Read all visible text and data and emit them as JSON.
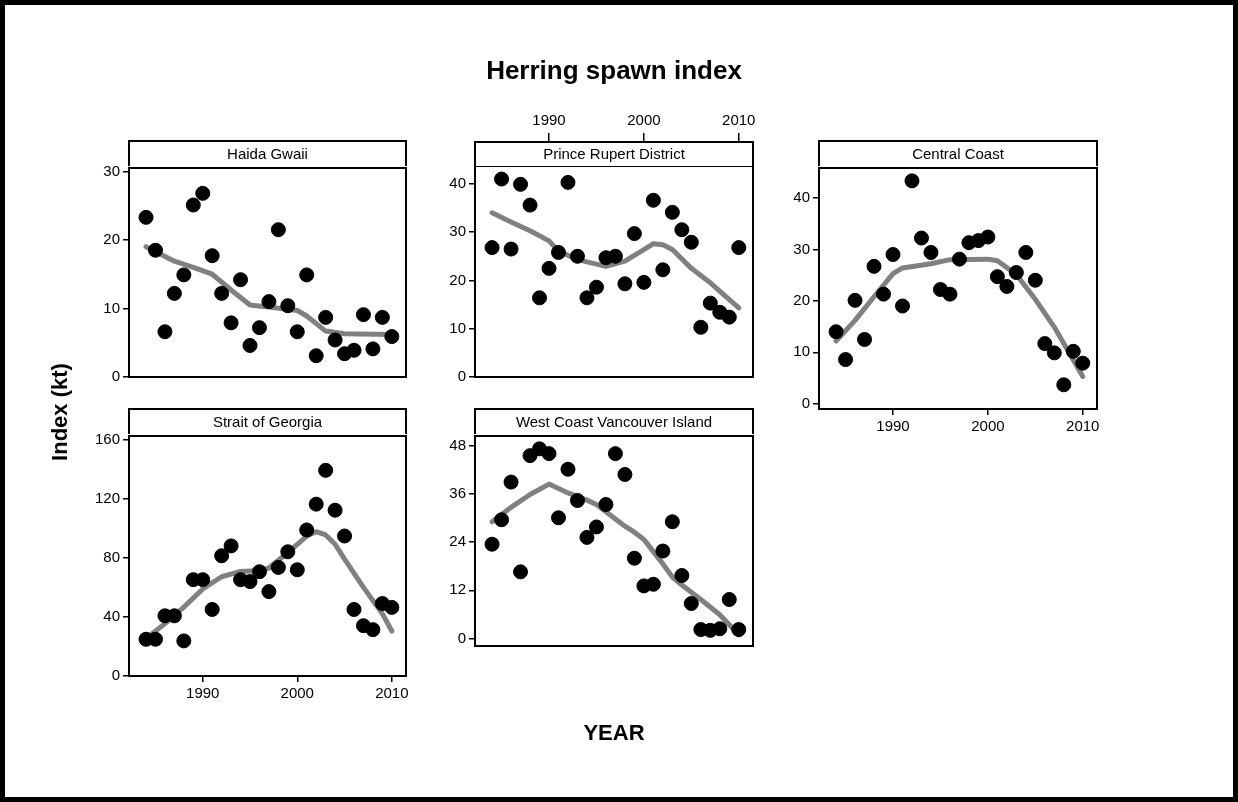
{
  "chart_data": [
    {
      "type": "scatter",
      "title": "Haida Gwaii",
      "ylabel": "Index (kt)",
      "x": [
        1984,
        1985,
        1986,
        1987,
        1988,
        1989,
        1990,
        1991,
        1992,
        1993,
        1994,
        1995,
        1996,
        1997,
        1998,
        1999,
        2000,
        2001,
        2002,
        2003,
        2004,
        2005,
        2006,
        2007,
        2008,
        2009,
        2010
      ],
      "xlim": [
        1982.2,
        2011.5
      ],
      "ylim": [
        0,
        30.5
      ],
      "yticks": [
        0,
        10,
        20,
        30
      ],
      "tick_labels": "y",
      "series": [
        {
          "type": "scatter",
          "color": "#000000",
          "marker": "circle",
          "values": [
            23.3,
            18.5,
            6.6,
            12.2,
            14.9,
            25.1,
            26.8,
            17.7,
            12.2,
            7.9,
            14.2,
            4.6,
            7.2,
            11.0,
            21.5,
            10.4,
            6.6,
            14.9,
            3.1,
            8.7,
            5.4,
            3.4,
            3.9,
            9.1,
            4.1,
            8.7,
            5.9
          ]
        },
        {
          "type": "line",
          "color": "#808080",
          "marker": "none",
          "x": [
            1984,
            1987,
            1989,
            1991,
            1993,
            1995,
            1997,
            2000,
            2001,
            2003,
            2005,
            2010
          ],
          "values": [
            19.0,
            16.9,
            16.0,
            15.0,
            12.7,
            10.5,
            10.2,
            9.7,
            8.9,
            6.7,
            6.3,
            6.2
          ]
        }
      ]
    },
    {
      "type": "scatter",
      "title": "Prince Rupert District",
      "annotations": [
        "Herring spawn index"
      ],
      "x": [
        1984,
        1985,
        1986,
        1987,
        1988,
        1989,
        1990,
        1991,
        1992,
        1993,
        1994,
        1995,
        1996,
        1997,
        1998,
        1999,
        2000,
        2001,
        2002,
        2003,
        2004,
        2005,
        2006,
        2007,
        2008,
        2009,
        2010
      ],
      "xlim": [
        1982.2,
        2011.5
      ],
      "x2lim": [
        1982.2,
        2011.5
      ],
      "x2ticks": [
        1990,
        2000,
        2010
      ],
      "ylim": [
        0,
        43.7
      ],
      "yticks": [
        0,
        10,
        20,
        30,
        40
      ],
      "tick_labels": "y",
      "series": [
        {
          "type": "scatter",
          "color": "#000000",
          "marker": "circle",
          "values": [
            26.8,
            41.0,
            26.5,
            39.9,
            35.6,
            16.4,
            22.5,
            25.8,
            40.3,
            25.0,
            16.4,
            18.6,
            24.7,
            25.0,
            19.3,
            29.7,
            19.6,
            36.6,
            22.2,
            34.1,
            30.5,
            27.9,
            10.3,
            15.3,
            13.4,
            12.4,
            26.8
          ]
        },
        {
          "type": "line",
          "color": "#808080",
          "marker": "none",
          "x": [
            1984,
            1986,
            1988,
            1990,
            1991,
            1993,
            1996,
            1998,
            2000,
            2001,
            2002,
            2003,
            2005,
            2007,
            2010
          ],
          "values": [
            34.0,
            32.1,
            30.3,
            28.2,
            26.1,
            24.3,
            22.9,
            24.0,
            26.4,
            27.6,
            27.4,
            26.4,
            22.5,
            19.5,
            14.3
          ]
        }
      ]
    },
    {
      "type": "scatter",
      "title": "Central Coast",
      "x": [
        1984,
        1985,
        1986,
        1987,
        1988,
        1989,
        1990,
        1991,
        1992,
        1993,
        1994,
        1995,
        1996,
        1997,
        1998,
        1999,
        2000,
        2001,
        2002,
        2003,
        2004,
        2005,
        2006,
        2007,
        2008,
        2009,
        2010
      ],
      "xlim": [
        1982.2,
        2011.5
      ],
      "xticks": [
        1990,
        2000,
        2010
      ],
      "ylim": [
        -1,
        45.8
      ],
      "yticks": [
        0,
        10,
        20,
        30,
        40
      ],
      "series": [
        {
          "type": "scatter",
          "color": "#000000",
          "marker": "circle",
          "values": [
            14.0,
            8.6,
            20.1,
            12.5,
            26.7,
            21.3,
            29.0,
            19.0,
            43.3,
            32.2,
            29.4,
            22.2,
            21.3,
            28.1,
            31.3,
            31.7,
            32.4,
            24.7,
            22.8,
            25.5,
            29.4,
            24.0,
            11.7,
            9.9,
            3.7,
            10.2,
            7.9
          ]
        },
        {
          "type": "line",
          "color": "#808080",
          "marker": "none",
          "x": [
            1984,
            1986,
            1988,
            1990,
            1991,
            1994,
            1996,
            2000,
            2001,
            2003,
            2005,
            2007,
            2010
          ],
          "values": [
            12.2,
            16.2,
            20.8,
            25.3,
            26.4,
            27.2,
            28.0,
            28.1,
            27.8,
            25.1,
            20.3,
            14.9,
            5.3
          ]
        }
      ]
    },
    {
      "type": "scatter",
      "title": "Strait of Georgia",
      "x": [
        1984,
        1985,
        1986,
        1987,
        1988,
        1989,
        1990,
        1991,
        1992,
        1993,
        1994,
        1995,
        1996,
        1997,
        1998,
        1999,
        2000,
        2001,
        2002,
        2003,
        2004,
        2005,
        2006,
        2007,
        2008,
        2009,
        2010
      ],
      "xlim": [
        1982.2,
        2011.5
      ],
      "xticks": [
        1990,
        2000,
        2010
      ],
      "ylim": [
        0,
        162.7
      ],
      "yticks": [
        0,
        40,
        80,
        120,
        160
      ],
      "series": [
        {
          "type": "scatter",
          "color": "#000000",
          "marker": "circle",
          "values": [
            24.9,
            24.9,
            40.8,
            40.8,
            23.8,
            65.3,
            65.3,
            45.1,
            81.5,
            88.2,
            65.3,
            64.0,
            70.7,
            57.2,
            73.6,
            84.2,
            72.0,
            99.0,
            116.5,
            139.4,
            112.4,
            94.9,
            45.1,
            34.1,
            31.4,
            49.1,
            46.5
          ]
        },
        {
          "type": "line",
          "color": "#808080",
          "marker": "none",
          "x": [
            1984,
            1986,
            1988,
            1990,
            1992,
            1994,
            1996,
            1997,
            1999,
            2000,
            2001,
            2002,
            2003,
            2004,
            2005,
            2007,
            2009,
            2010
          ],
          "values": [
            25.4,
            35.5,
            46.7,
            59.0,
            67.3,
            70.9,
            71.4,
            73.2,
            83.7,
            89.3,
            94.9,
            97.8,
            95.6,
            89.3,
            79.2,
            60.1,
            42.2,
            30.5
          ]
        }
      ]
    },
    {
      "type": "scatter",
      "title": "West Coast Vancouver Island",
      "xlabel": "YEAR",
      "x": [
        1984,
        1985,
        1986,
        1987,
        1988,
        1989,
        1990,
        1991,
        1992,
        1993,
        1994,
        1995,
        1996,
        1997,
        1998,
        1999,
        2000,
        2001,
        2002,
        2003,
        2004,
        2005,
        2006,
        2007,
        2008,
        2009,
        2010
      ],
      "xlim": [
        1982.2,
        2011.5
      ],
      "ylim": [
        -1.9,
        50.5
      ],
      "yticks": [
        0,
        12,
        24,
        36,
        48
      ],
      "tick_labels": "y",
      "series": [
        {
          "type": "scatter",
          "color": "#000000",
          "marker": "circle",
          "values": [
            23.5,
            29.6,
            39.0,
            16.6,
            45.6,
            47.3,
            46.1,
            30.1,
            42.2,
            34.4,
            25.2,
            27.8,
            33.4,
            46.1,
            40.9,
            20.0,
            13.1,
            13.5,
            21.8,
            29.1,
            15.7,
            8.7,
            2.2,
            2.0,
            2.4,
            9.7,
            2.2
          ]
        },
        {
          "type": "line",
          "color": "#808080",
          "marker": "none",
          "x": [
            1984,
            1986,
            1988,
            1990,
            1992,
            1994,
            1995,
            1997,
            1998,
            1999,
            2000,
            2002,
            2003,
            2004,
            2006,
            2008,
            2010
          ],
          "values": [
            29.1,
            32.7,
            35.9,
            38.5,
            36.3,
            34.5,
            33.4,
            29.8,
            28.0,
            26.5,
            24.7,
            18.6,
            15.3,
            13.3,
            9.7,
            5.9,
            0.9
          ]
        }
      ]
    }
  ]
}
